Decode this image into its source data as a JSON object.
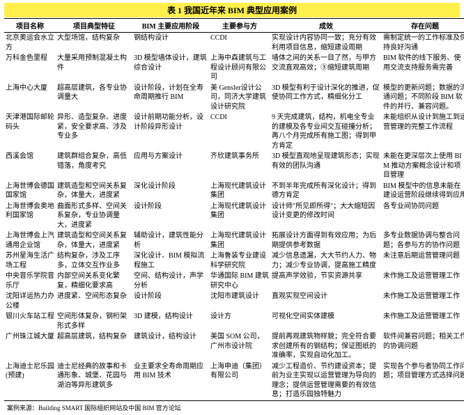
{
  "table_title": "表 1  我国近年来 BIM 典型应用案例",
  "columns": [
    "项目名称",
    "项目典型特征",
    "BIM 主要应用阶段",
    "主要参与方",
    "成效",
    "存在问题"
  ],
  "rows": [
    [
      "北京奥运会水立方",
      "大型场馆，结构复杂",
      "钢结构设计",
      "CCDI",
      "实现设计内容协同一致；充分有效利用项目信息，缩短建设周期",
      "需制定统一的工作标准及保持良好沟通"
    ],
    [
      "万科金色里程",
      "大量采用预制混凝土构件",
      "3D 模型墙体设计，建筑综合设计",
      "上海中森建筑与工程设计顾问有限公司",
      "墙体之间的关系一目了然，与甲方交流直观高效；③缩短建筑周期",
      "BIM 软件的线下服务、使用交流支持服务需完善"
    ],
    [
      "上海中心大厦",
      "超高层建筑，各专业协调量大",
      "设计阶段，计划在全寿命周期推行 BIM",
      "美 Gensler设计公司，同济大学建筑设计研究院",
      "3D 模型有利于设计深化的推进，促使协同工作方式，精细化分工",
      "模型的更新问题；数据的流通问题；不同阶段 BIM 软件的并行、兼容问题。"
    ],
    [
      "天津港国际邮轮码头",
      "异形、造型复杂、进度紧，安全要求高、涉及专业多",
      "设计前期功能分析，设计阶段异形设计",
      "CCDI",
      "9 天完成建筑，结构，机电全专业的建模及各专业间交互碰撞分析；再八个月完成所有施工图；得到甲方肯定",
      "未能组织从设计到施工到运营管理的完整工作流程"
    ],
    [
      "西溪会馆",
      "建筑群组合复杂，高低错落，角度考究",
      "应用与方案设计",
      "齐欣建筑事务所",
      "3D 模型直观地呈现建筑形态；实现有效的团队沟通",
      "未能在更深层次上使用 BIM 推动方案概念设计和项目管理"
    ],
    [
      "上海世博会德国国家馆",
      "建筑造型和空间关系复杂，体量大，进度紧",
      "深化设计阶段",
      "上海现代建筑设计集团",
      "不到半年完成所有深化设计；得到德方肯定",
      "BIM 模型中的信息未能在建设运营阶段继续得到应用"
    ],
    [
      "上海世博会奥地利国家馆",
      "曲面形式多样、空间关系复杂，专业协调量大，进度紧",
      "设计阶段",
      "上海现代建筑设计集团",
      "设计师\"所见即所得\"；大大缩短因设计变更的修改时间",
      "各专业间协同问题"
    ],
    [
      "上海世博会上汽通用企业馆",
      "建筑造型和空间关系复杂，体量大，进度紧",
      "辅助设计，建筑性能分析",
      "上海现代建筑设计集团",
      "拓展设计方面得到有效应用；为后期提供参考数据",
      "多专业数据协调与整合问题；各参与方的协作问题"
    ],
    [
      "苏州星海生活广场工程",
      "结构复杂，涉及工序多，立体交互作业多",
      "深化设计、BIM 模拟流程施工",
      "上海鲁装专业建设科学研究院",
      "减少信息遗漏，大大节约人力、物力；减少专业协调，提高施工精度",
      "未注意后期运营管理问题"
    ],
    [
      "中央音乐学院音乐厅",
      "内部空间关系变化繁复，精细化要求高",
      "空间、结构设计，声学分析",
      "华通国际 BIM 建筑研究中心",
      "提高声学效验，节实资源共享",
      "未作施工及运营管理工作"
    ],
    [
      "沈阳详运热力办公楼",
      "进度紧、空间形态复杂",
      "设计阶段",
      "沈阳市建筑设计",
      "直观实现空间设计",
      "未作施工及运营管理工作"
    ],
    [
      "银川火车站工程",
      "空间形体复杂，钢桁架形式多样",
      "3D 建模，结构设计",
      "设计方",
      "可视化空间实体建模",
      "未作施工及运营管理工作"
    ],
    [
      "广州珠江城大厦",
      "超高层建筑，结构复杂",
      "建筑设计，结构设计",
      "美国 SOM 公司，广州市设计院",
      "提前再观建筑物样貌；完全符合要求创建所有的钢结构；保证图纸的准确率，实现自动化加工。",
      "软件间兼容问题；相关工作的协调问题"
    ],
    [
      "上海迪士尼乐园 (预建)",
      "迪士尼经典的故事和卡通形象、城堡、花园与湖泊等异形建筑多",
      "业主要求全寿命周期应用 BIM 技术",
      "上海申迪（集团）有限公司",
      "减少工程造价、节约建设资本；提前为业主实现以运营管理为导向的理念；提供运营管理需要的有效信息；打造乐园独特魅力",
      "实现各个参与者协同工作问题；项目管理方式选择问题"
    ]
  ],
  "footnote": "案例来源：Building SMART 国际组织网站及中国 BIM 官方论坛",
  "colors": {
    "highlight": "#fff04c",
    "text": "#000000",
    "bg": "#ffffff"
  }
}
